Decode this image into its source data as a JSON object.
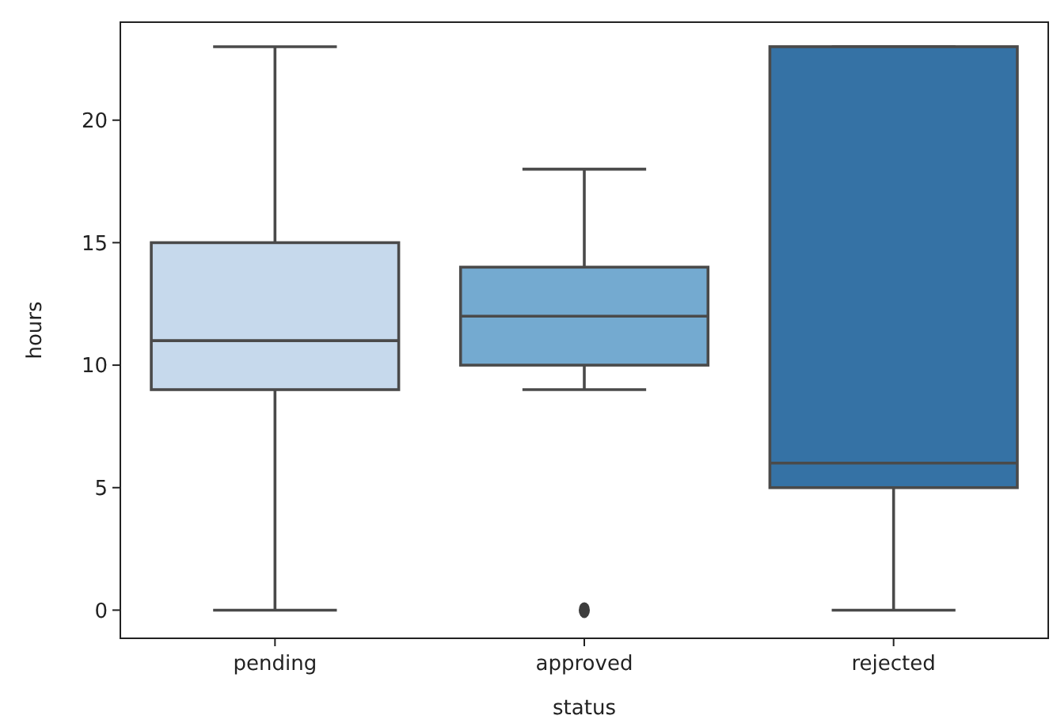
{
  "chart_data": {
    "type": "box",
    "xlabel": "status",
    "ylabel": "hours",
    "categories": [
      "pending",
      "approved",
      "rejected"
    ],
    "boxes": [
      {
        "low": 0,
        "q1": 9,
        "median": 11,
        "q3": 15,
        "high": 23
      },
      {
        "low": 9,
        "q1": 10,
        "median": 12,
        "q3": 14,
        "high": 18,
        "outliers": [
          0
        ]
      },
      {
        "low": 0,
        "q1": 5,
        "median": 6,
        "q3": 23,
        "high": 23
      }
    ],
    "colors": [
      "#c6d9ec",
      "#74aad0",
      "#3572a5"
    ],
    "ylim": [
      -1.15,
      24
    ],
    "yticks": [
      0,
      5,
      10,
      15,
      20
    ]
  }
}
